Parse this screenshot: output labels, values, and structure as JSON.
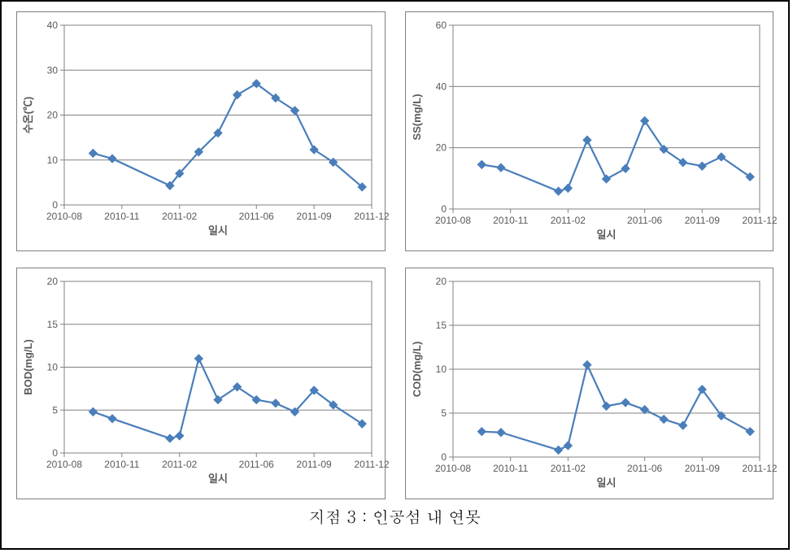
{
  "caption": "지점 3 : 인공섬 내 연못",
  "layout": {
    "rows": 2,
    "cols": 2,
    "panel_border_color": "#808080",
    "outer_border_color": "#000000",
    "background_color": "#ffffff"
  },
  "shared_x_axis": {
    "label": "일시",
    "ticks": [
      "2010-08",
      "2010-11",
      "2011-02",
      "2011-06",
      "2011-09",
      "2011-12"
    ],
    "tick_numeric": [
      0,
      3,
      6,
      10,
      13,
      16
    ],
    "data_x": [
      1.5,
      2.5,
      5.5,
      6,
      7,
      8,
      9,
      10,
      11,
      12,
      13,
      14,
      15.5
    ]
  },
  "common_style": {
    "line_color": "#4a7ebb",
    "marker_color": "#4a7ebb",
    "marker_edge_color": "#4a7ebb",
    "marker_shape": "diamond",
    "marker_size": 5,
    "line_width": 2.2,
    "grid_color": "#808080",
    "axis_color": "#808080",
    "tick_color": "#808080",
    "tick_font_size": 12,
    "label_font_size": 13,
    "tick_text_color": "#595959",
    "label_text_color": "#595959"
  },
  "charts": [
    {
      "type": "line",
      "ylabel": "수온(℃)",
      "ylim": [
        0,
        40
      ],
      "ytick_step": 10,
      "values": [
        11.5,
        10.3,
        4.3,
        7,
        11.8,
        16,
        24.5,
        27,
        23.8,
        21,
        12.3,
        9.5,
        4
      ]
    },
    {
      "type": "line",
      "ylabel": "SS(mg/L)",
      "ylim": [
        0,
        60
      ],
      "ytick_step": 20,
      "values": [
        14.5,
        13.5,
        5.8,
        6.8,
        22.5,
        9.8,
        13.2,
        28.8,
        19.5,
        15.2,
        14,
        17,
        10.5
      ]
    },
    {
      "type": "line",
      "ylabel": "BOD(mg/L)",
      "ylim": [
        0,
        20
      ],
      "ytick_step": 5,
      "values": [
        4.8,
        4,
        1.7,
        2,
        11,
        6.2,
        7.7,
        6.2,
        5.8,
        4.8,
        7.3,
        5.6,
        3.4
      ]
    },
    {
      "type": "line",
      "ylabel": "COD(mg/L)",
      "ylim": [
        0,
        20
      ],
      "ytick_step": 5,
      "values": [
        2.9,
        2.8,
        0.8,
        1.3,
        10.5,
        5.8,
        6.2,
        5.4,
        4.3,
        3.6,
        7.7,
        4.7,
        2.9
      ]
    }
  ]
}
